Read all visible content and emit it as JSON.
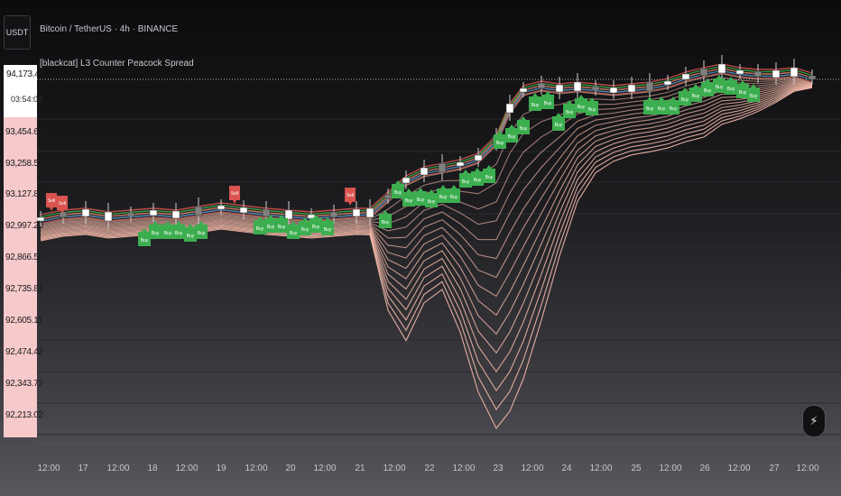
{
  "header": {
    "currency_button": "USDT",
    "title": "Bitcoin / TetherUS · 4h · BINANCE",
    "indicator": "[blackcat] L3 Counter Peacock Spread"
  },
  "price_scale": {
    "current_price": "94,173.46",
    "countdown": "03:54:08",
    "labels": [
      "93,454.63",
      "93,258.59",
      "93,127.89",
      "92,997.20",
      "92,866.50",
      "92,735.81",
      "92,605.11",
      "92,474.42",
      "92,343.72",
      "92,213.02"
    ]
  },
  "time_axis": {
    "labels": [
      "12:00",
      "17",
      "12:00",
      "18",
      "12:00",
      "19",
      "12:00",
      "20",
      "12:00",
      "21",
      "12:00",
      "22",
      "12:00",
      "23",
      "12:00",
      "24",
      "12:00",
      "25",
      "12:00",
      "26",
      "12:00",
      "27",
      "12:00"
    ]
  },
  "signals": {
    "buy_label": "Buy",
    "sell_label": "Sell"
  },
  "colors": {
    "up_candle": "#ffffff",
    "down_candle": "#808080",
    "buy_flag": "#3cae4f",
    "sell_flag": "#d9534f",
    "fan_line": "#f3b8a8",
    "price_scale_bg": "#f6c9cb"
  },
  "icons": {
    "replay": "lightning-bolt-icon"
  }
}
